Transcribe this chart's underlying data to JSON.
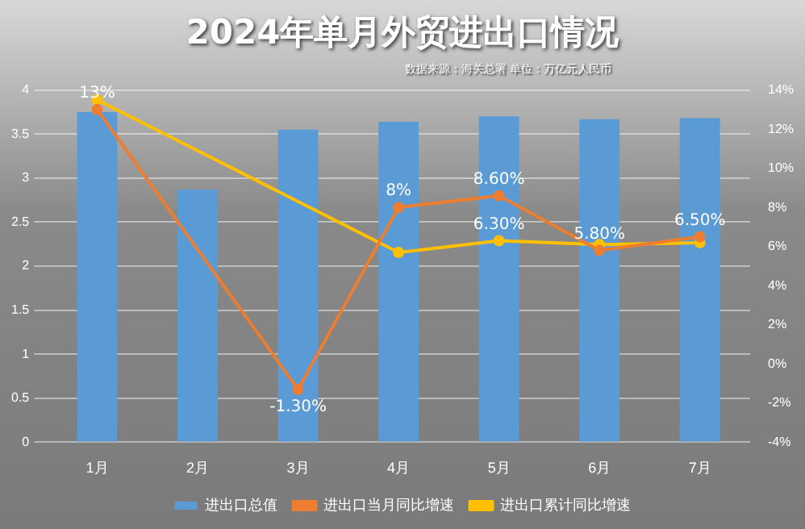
{
  "chart_data": {
    "type": "bar",
    "title": "2024年单月外贸进出口情况",
    "subtitle": "数据来源：海关总署 单位：万亿元人民币",
    "categories": [
      "1月",
      "2月",
      "3月",
      "4月",
      "5月",
      "6月",
      "7月"
    ],
    "series": [
      {
        "name": "进出口总值",
        "color": "#5b9bd5",
        "values": [
          3.75,
          2.87,
          3.55,
          3.64,
          3.7,
          3.67,
          3.68
        ]
      },
      {
        "name": "进出口当月同比增速",
        "type": "line",
        "axis": "y2",
        "color": "#ed7d31",
        "values": [
          13,
          null,
          -1.3,
          8,
          8.6,
          5.8,
          6.5
        ],
        "value_labels": [
          "13%",
          null,
          "-1.30%",
          "8%",
          "8.60%",
          "5.80%",
          "6.50%"
        ]
      },
      {
        "name": "进出口累计同比增速",
        "type": "line",
        "axis": "y2",
        "color": "#ffc000",
        "values": [
          13.5,
          null,
          null,
          5.7,
          6.3,
          6.1,
          6.2
        ],
        "value_labels": [
          null,
          null,
          null,
          null,
          "6.30%",
          null,
          null
        ]
      }
    ],
    "ylim": [
      0,
      4
    ],
    "yticks": [
      0,
      0.5,
      1,
      1.5,
      2,
      2.5,
      3,
      3.5,
      4
    ],
    "y2lim": [
      -4,
      14
    ],
    "y2ticks": [
      {
        "value": -4,
        "label": "-4%"
      },
      {
        "value": -2,
        "label": "-2%"
      },
      {
        "value": 0,
        "label": "0%"
      },
      {
        "value": 2,
        "label": "2%"
      },
      {
        "value": 4,
        "label": "4%"
      },
      {
        "value": 6,
        "label": "6%"
      },
      {
        "value": 8,
        "label": "8%"
      },
      {
        "value": 10,
        "label": "10%"
      },
      {
        "value": 12,
        "label": "12%"
      },
      {
        "value": 14,
        "label": "14%"
      }
    ],
    "grid": "y",
    "legend": "bottom",
    "marker": "circle",
    "line_style": "solid"
  }
}
